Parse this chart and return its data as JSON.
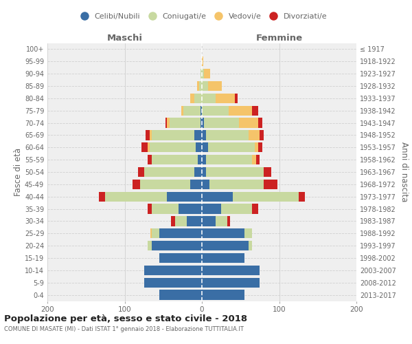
{
  "age_groups": [
    "0-4",
    "5-9",
    "10-14",
    "15-19",
    "20-24",
    "25-29",
    "30-34",
    "35-39",
    "40-44",
    "45-49",
    "50-54",
    "55-59",
    "60-64",
    "65-69",
    "70-74",
    "75-79",
    "80-84",
    "85-89",
    "90-94",
    "95-99",
    "100+"
  ],
  "birth_years": [
    "2013-2017",
    "2008-2012",
    "2003-2007",
    "1998-2002",
    "1993-1997",
    "1988-1992",
    "1983-1987",
    "1978-1982",
    "1973-1977",
    "1968-1972",
    "1963-1967",
    "1958-1962",
    "1953-1957",
    "1948-1952",
    "1943-1947",
    "1938-1942",
    "1933-1937",
    "1928-1932",
    "1923-1927",
    "1918-1922",
    "≤ 1917"
  ],
  "maschi": {
    "celibi": [
      55,
      75,
      75,
      55,
      65,
      55,
      20,
      30,
      45,
      15,
      10,
      5,
      8,
      10,
      2,
      2,
      0,
      0,
      0,
      0,
      0
    ],
    "coniugati": [
      0,
      0,
      0,
      0,
      5,
      10,
      15,
      35,
      80,
      65,
      65,
      60,
      60,
      55,
      40,
      22,
      10,
      4,
      2,
      0,
      0
    ],
    "vedovi": [
      0,
      0,
      0,
      0,
      0,
      2,
      0,
      0,
      0,
      0,
      0,
      0,
      2,
      3,
      3,
      3,
      5,
      2,
      0,
      0,
      0
    ],
    "divorziati": [
      0,
      0,
      0,
      0,
      0,
      0,
      5,
      5,
      8,
      10,
      8,
      5,
      8,
      5,
      2,
      0,
      0,
      0,
      0,
      0,
      0
    ]
  },
  "femmine": {
    "nubili": [
      55,
      75,
      75,
      55,
      60,
      55,
      18,
      25,
      40,
      10,
      5,
      5,
      8,
      5,
      3,
      0,
      0,
      0,
      0,
      0,
      0
    ],
    "coniugate": [
      0,
      0,
      0,
      0,
      5,
      10,
      15,
      40,
      85,
      70,
      75,
      60,
      60,
      55,
      45,
      35,
      18,
      8,
      3,
      0,
      0
    ],
    "vedove": [
      0,
      0,
      0,
      0,
      0,
      0,
      0,
      0,
      0,
      0,
      0,
      5,
      5,
      15,
      25,
      30,
      25,
      18,
      8,
      2,
      0
    ],
    "divorziate": [
      0,
      0,
      0,
      0,
      0,
      0,
      3,
      8,
      8,
      18,
      10,
      5,
      5,
      5,
      5,
      8,
      3,
      0,
      0,
      0,
      0
    ]
  },
  "colors": {
    "celibi": "#3a6ea5",
    "coniugati": "#c8d9a0",
    "vedovi": "#f5c46a",
    "divorziati": "#cc2222"
  },
  "xlim": 200,
  "title": "Popolazione per età, sesso e stato civile - 2018",
  "subtitle": "COMUNE DI MASATE (MI) - Dati ISTAT 1° gennaio 2018 - Elaborazione TUTTITALIA.IT",
  "ylabel_left": "Fasce di età",
  "ylabel_right": "Anni di nascita",
  "maschi_label": "Maschi",
  "femmine_label": "Femmine",
  "legend_labels": [
    "Celibi/Nubili",
    "Coniugati/e",
    "Vedovi/e",
    "Divorziati/e"
  ],
  "bg_color": "#efefef",
  "grid_color": "#d0d0d0",
  "text_color": "#666666"
}
